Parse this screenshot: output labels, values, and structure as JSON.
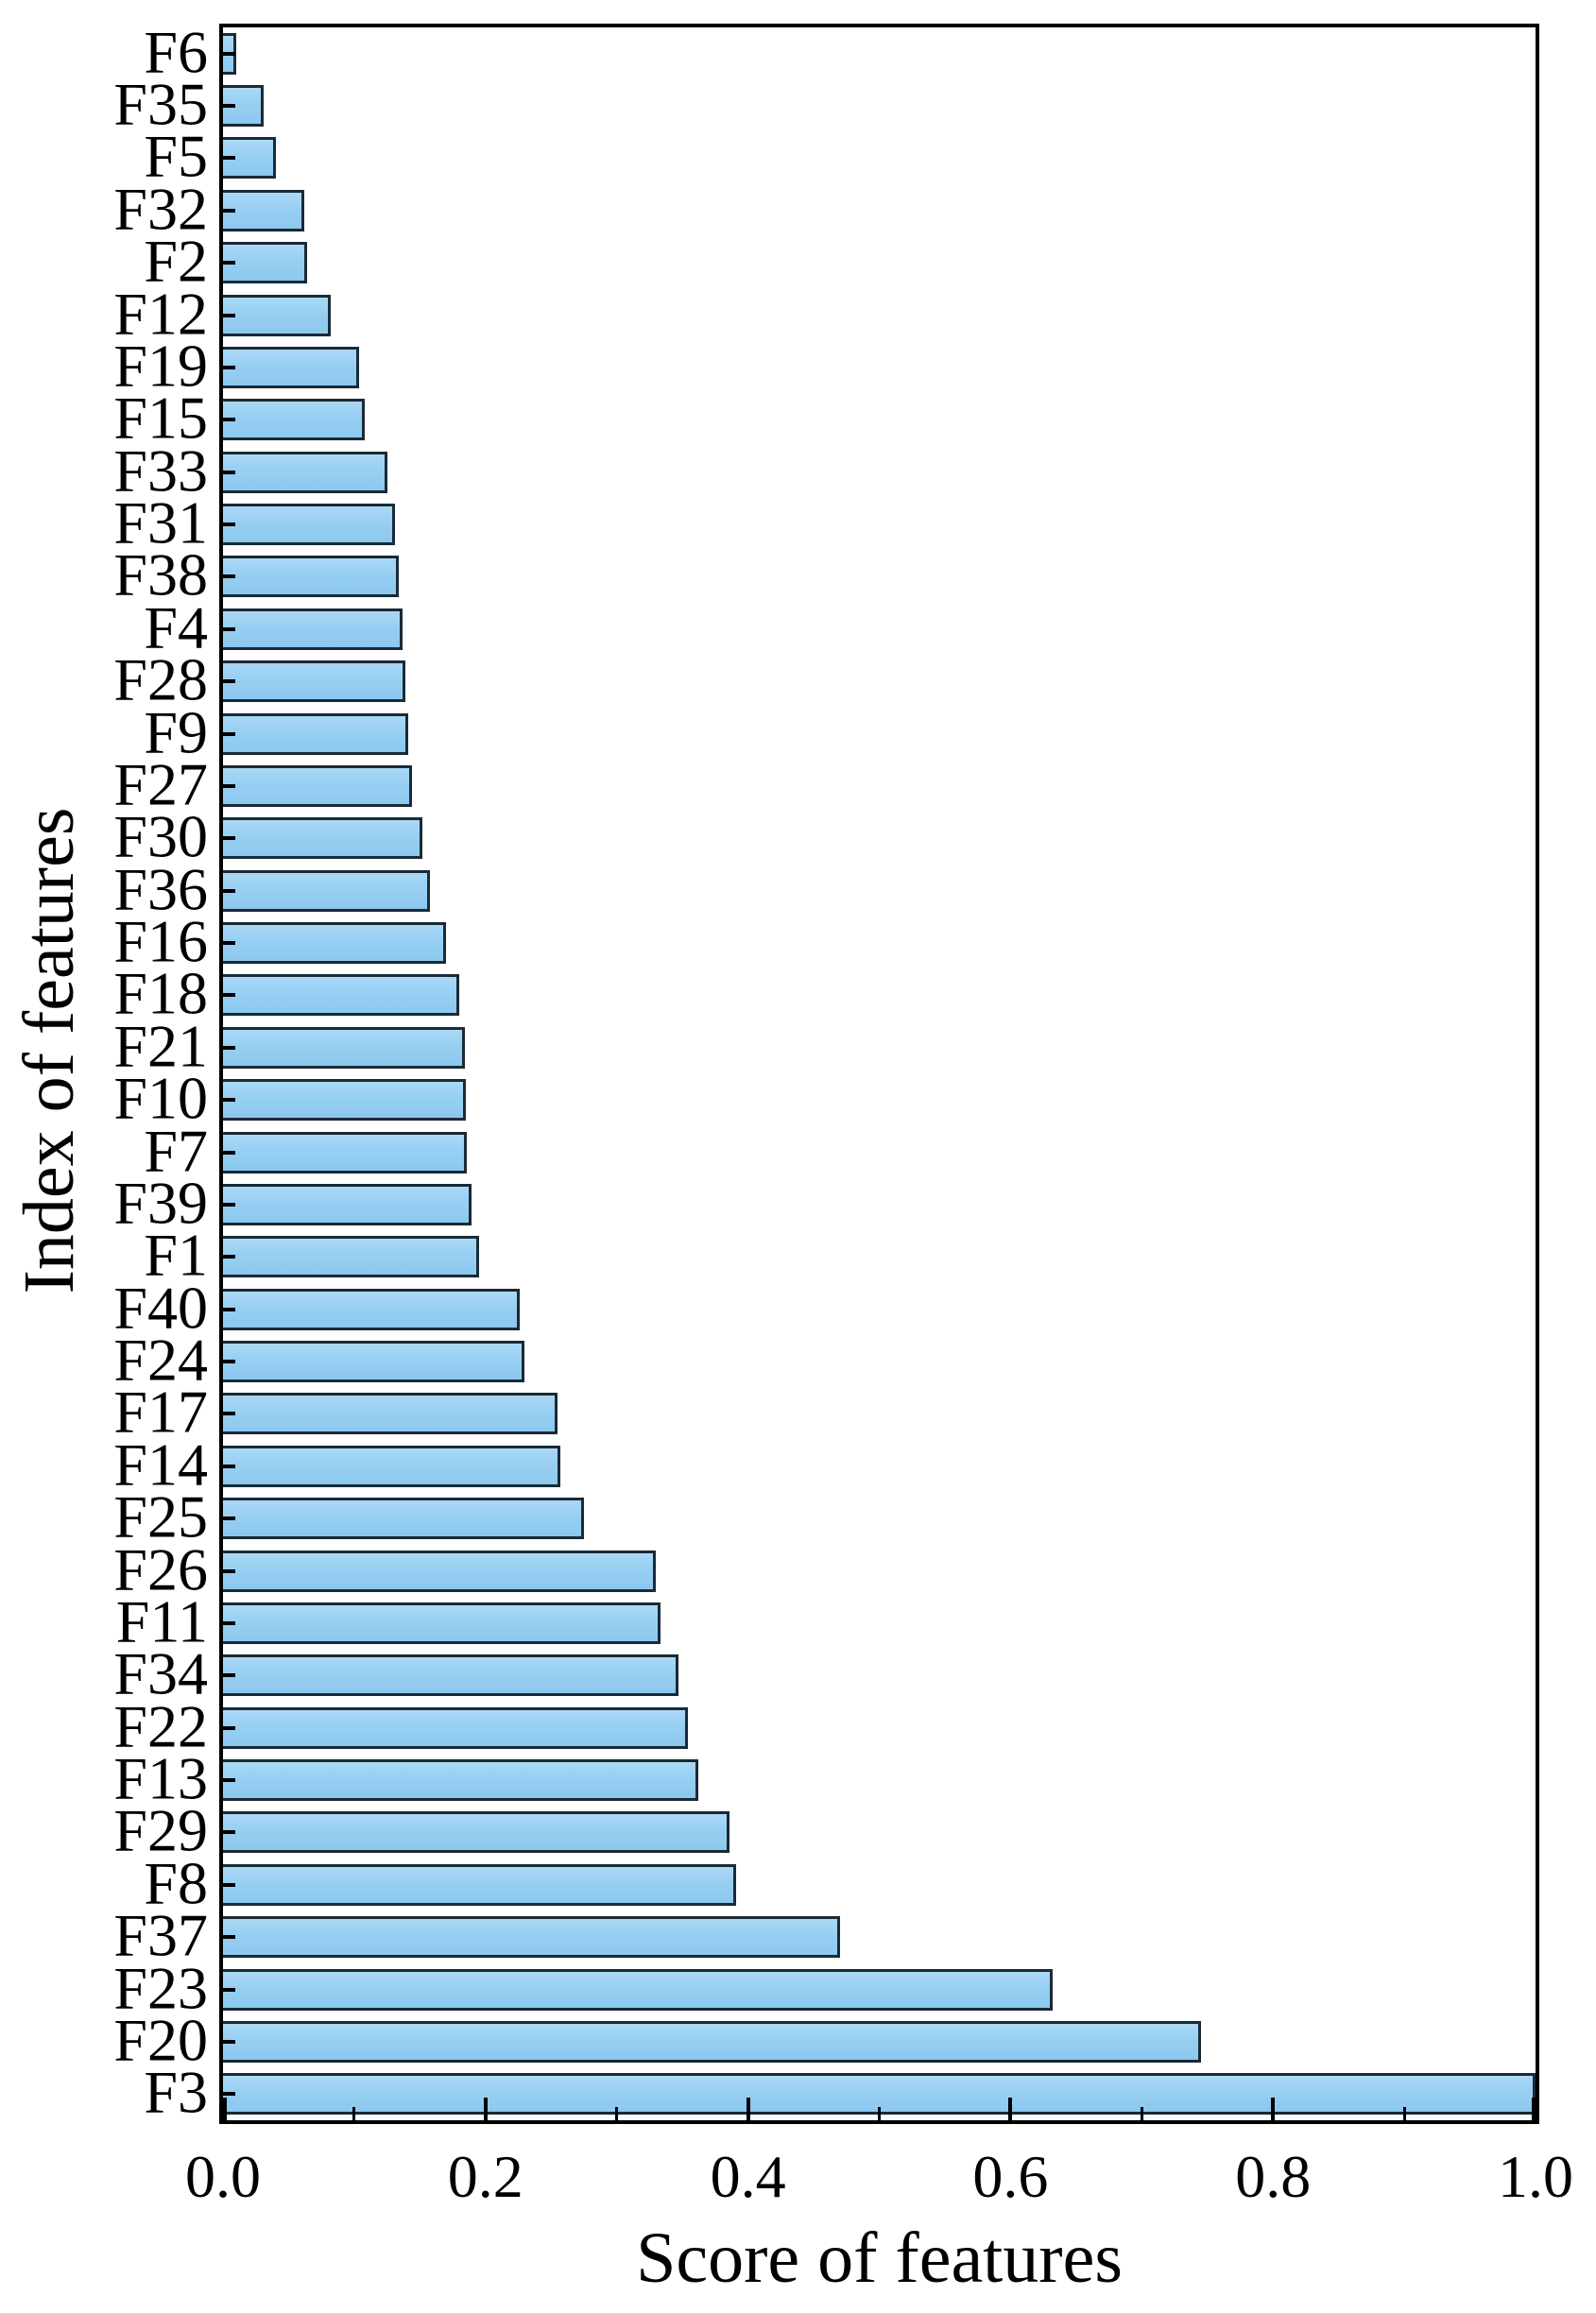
{
  "figure": {
    "background_color": "#ffffff",
    "text_color": "#000000"
  },
  "chart_data": {
    "type": "bar",
    "orientation": "horizontal",
    "title": "",
    "xlabel": "Score of features",
    "ylabel": "Index of features",
    "categories": [
      "F6",
      "F35",
      "F5",
      "F32",
      "F2",
      "F12",
      "F19",
      "F15",
      "F33",
      "F31",
      "F38",
      "F4",
      "F28",
      "F9",
      "F27",
      "F30",
      "F36",
      "F16",
      "F18",
      "F21",
      "F10",
      "F7",
      "F39",
      "F1",
      "F40",
      "F24",
      "F17",
      "F14",
      "F25",
      "F26",
      "F11",
      "F34",
      "F22",
      "F13",
      "F29",
      "F8",
      "F37",
      "F23",
      "F20",
      "F3"
    ],
    "values": [
      0.01,
      0.031,
      0.04,
      0.062,
      0.064,
      0.082,
      0.104,
      0.108,
      0.125,
      0.131,
      0.134,
      0.137,
      0.139,
      0.141,
      0.144,
      0.152,
      0.158,
      0.17,
      0.18,
      0.184,
      0.185,
      0.186,
      0.189,
      0.195,
      0.226,
      0.23,
      0.255,
      0.257,
      0.275,
      0.33,
      0.333,
      0.347,
      0.354,
      0.362,
      0.386,
      0.391,
      0.47,
      0.632,
      0.745,
      1.0
    ],
    "xlim": [
      0.0,
      1.0
    ],
    "x_ticks": [
      0.0,
      0.2,
      0.4,
      0.6,
      0.8,
      1.0
    ],
    "x_tick_labels": [
      "0.0",
      "0.2",
      "0.4",
      "0.6",
      "0.8",
      "1.0"
    ],
    "x_minor_ticks": [
      0.1,
      0.3,
      0.5,
      0.7,
      0.9
    ],
    "grid": false,
    "legend": null,
    "bar_fill_color": "#97cff2",
    "bar_edge_color": "#1a2a36",
    "axis_color": "#000000"
  }
}
